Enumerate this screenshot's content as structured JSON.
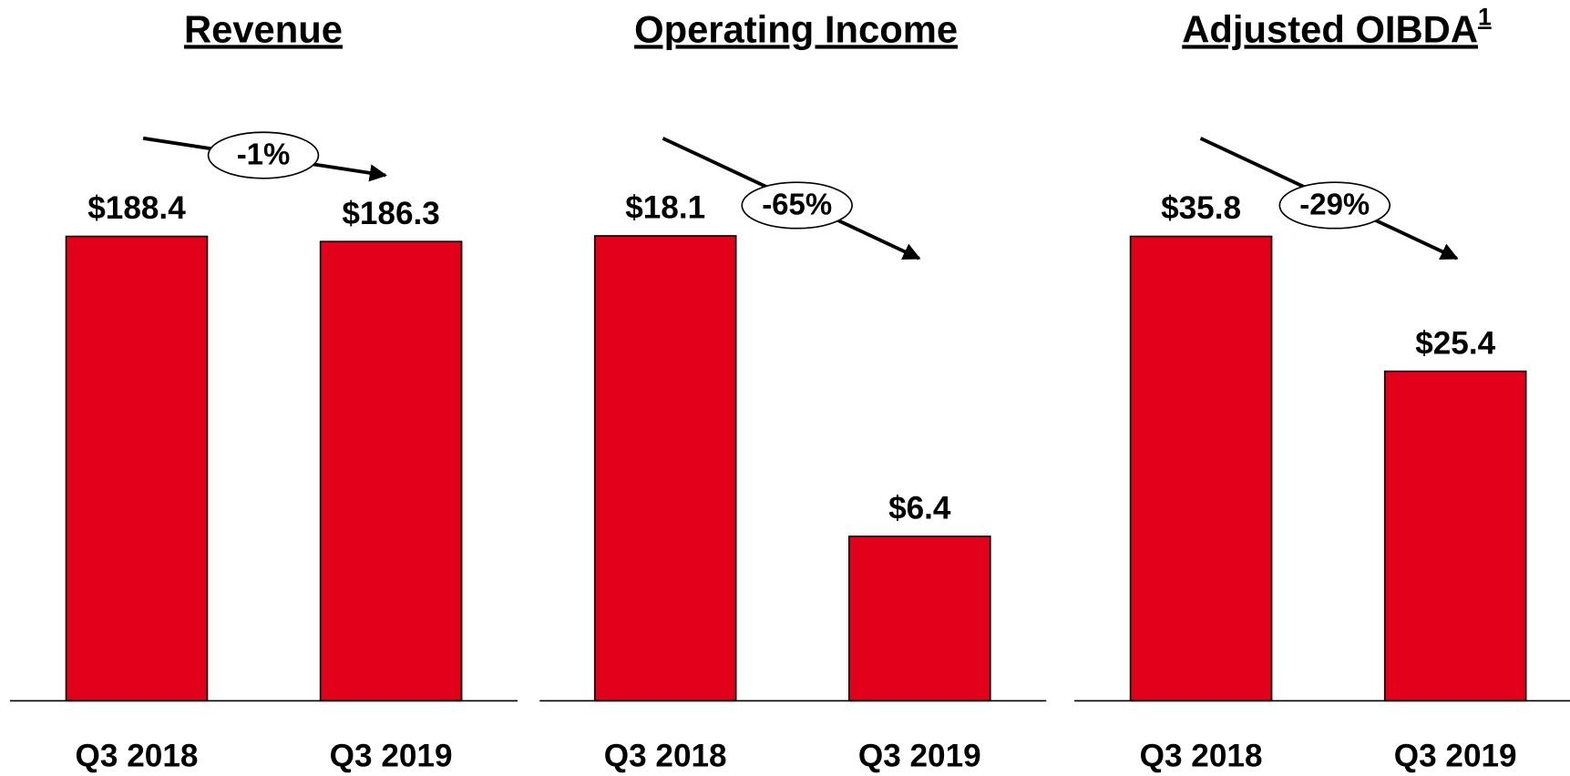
{
  "chart_data": [
    {
      "type": "bar",
      "title": "Revenue",
      "categories": [
        "Q3 2018",
        "Q3 2019"
      ],
      "values": [
        188.4,
        186.3
      ],
      "value_labels": [
        "$188.4",
        "$186.3"
      ],
      "annotation": "-1%",
      "color": "#e2001a",
      "ylim": [
        0,
        235.5
      ]
    },
    {
      "type": "bar",
      "title": "Operating Income",
      "categories": [
        "Q3 2018",
        "Q3 2019"
      ],
      "values": [
        18.1,
        6.4
      ],
      "value_labels": [
        "$18.1",
        "$6.4"
      ],
      "annotation": "-65%",
      "color": "#e2001a",
      "ylim": [
        0,
        22.6
      ]
    },
    {
      "type": "bar",
      "title": "Adjusted OIBDA",
      "title_superscript": "1",
      "categories": [
        "Q3 2018",
        "Q3 2019"
      ],
      "values": [
        35.8,
        25.4
      ],
      "value_labels": [
        "$35.8",
        "$25.4"
      ],
      "annotation": "-29%",
      "color": "#e2001a",
      "ylim": [
        0,
        44.75
      ]
    }
  ]
}
